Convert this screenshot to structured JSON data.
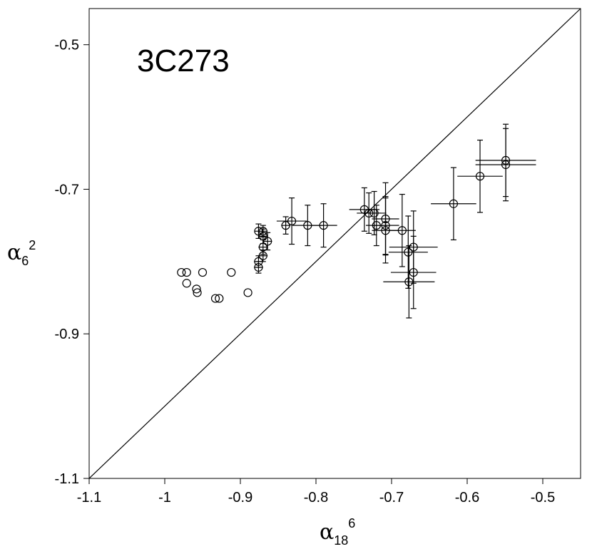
{
  "chart_data": {
    "type": "scatter",
    "title": "",
    "annotation": "3C273",
    "xlabel": {
      "symbol": "α",
      "sub": "18",
      "sup": "6"
    },
    "ylabel": {
      "symbol": "α",
      "sub": "6",
      "sup": "2"
    },
    "xlim": [
      -1.1,
      -0.45
    ],
    "ylim": [
      -1.1,
      -0.45
    ],
    "x_ticks": [
      -1.1,
      -1.0,
      -0.9,
      -0.8,
      -0.7,
      -0.6,
      -0.5
    ],
    "x_tick_labels": [
      "-1.1",
      "-1",
      "-0.9",
      "-0.8",
      "-0.7",
      "-0.6",
      "-0.5"
    ],
    "y_ticks": [
      -1.1,
      -0.9,
      -0.7,
      -0.5
    ],
    "y_tick_labels": [
      "-1.1",
      "-0.9",
      "-0.7",
      "-0.5"
    ],
    "grid": false,
    "reference_line": {
      "type": "identity",
      "from": [
        -1.1,
        -1.1
      ],
      "to": [
        -0.45,
        -0.45
      ]
    },
    "marker": "open-circle",
    "points": [
      {
        "x": -0.978,
        "y": -0.815
      },
      {
        "x": -0.971,
        "y": -0.815
      },
      {
        "x": -0.971,
        "y": -0.83
      },
      {
        "x": -0.958,
        "y": -0.838
      },
      {
        "x": -0.957,
        "y": -0.843
      },
      {
        "x": -0.95,
        "y": -0.815
      },
      {
        "x": -0.933,
        "y": -0.851
      },
      {
        "x": -0.928,
        "y": -0.851
      },
      {
        "x": -0.912,
        "y": -0.815
      },
      {
        "x": -0.89,
        "y": -0.843
      },
      {
        "x": -0.876,
        "y": -0.758,
        "xerr": 0.005,
        "yerr": 0.01
      },
      {
        "x": -0.876,
        "y": -0.8,
        "xerr": 0.006,
        "yerr": 0.008
      },
      {
        "x": -0.876,
        "y": -0.808,
        "xerr": 0.006,
        "yerr": 0.008
      },
      {
        "x": -0.87,
        "y": -0.758,
        "xerr": 0.006,
        "yerr": 0.008
      },
      {
        "x": -0.87,
        "y": -0.765,
        "xerr": 0.006,
        "yerr": 0.01
      },
      {
        "x": -0.87,
        "y": -0.78,
        "xerr": 0.006,
        "yerr": 0.01
      },
      {
        "x": -0.87,
        "y": -0.792,
        "xerr": 0.006,
        "yerr": 0.008
      },
      {
        "x": -0.864,
        "y": -0.772,
        "xerr": 0.006,
        "yerr": 0.012
      },
      {
        "x": -0.84,
        "y": -0.75,
        "xerr": 0.006,
        "yerr": 0.012
      },
      {
        "x": -0.832,
        "y": -0.744,
        "xerr": 0.02,
        "yerr": 0.032
      },
      {
        "x": -0.811,
        "y": -0.75,
        "xerr": 0.02,
        "yerr": 0.028
      },
      {
        "x": -0.79,
        "y": -0.75,
        "xerr": 0.018,
        "yerr": 0.03
      },
      {
        "x": -0.736,
        "y": -0.728,
        "xerr": 0.02,
        "yerr": 0.03
      },
      {
        "x": -0.73,
        "y": -0.733,
        "xerr": 0.016,
        "yerr": 0.028
      },
      {
        "x": -0.723,
        "y": -0.733,
        "xerr": 0.016,
        "yerr": 0.03
      },
      {
        "x": -0.72,
        "y": -0.75,
        "xerr": 0.014,
        "yerr": 0.028
      },
      {
        "x": -0.708,
        "y": -0.741,
        "xerr": 0.018,
        "yerr": 0.05
      },
      {
        "x": -0.708,
        "y": -0.75,
        "xerr": 0.018,
        "yerr": 0.04
      },
      {
        "x": -0.708,
        "y": -0.757,
        "xerr": 0.018,
        "yerr": 0.045
      },
      {
        "x": -0.686,
        "y": -0.757,
        "xerr": 0.018,
        "yerr": 0.05
      },
      {
        "x": -0.678,
        "y": -0.787,
        "xerr": 0.026,
        "yerr": 0.05
      },
      {
        "x": -0.677,
        "y": -0.828,
        "xerr": 0.034,
        "yerr": 0.05
      },
      {
        "x": -0.671,
        "y": -0.78,
        "xerr": 0.032,
        "yerr": 0.05
      },
      {
        "x": -0.671,
        "y": -0.815,
        "xerr": 0.03,
        "yerr": 0.05
      },
      {
        "x": -0.618,
        "y": -0.72,
        "xerr": 0.03,
        "yerr": 0.05
      },
      {
        "x": -0.583,
        "y": -0.682,
        "xerr": 0.03,
        "yerr": 0.05
      },
      {
        "x": -0.549,
        "y": -0.66,
        "xerr": 0.04,
        "yerr": 0.05
      },
      {
        "x": -0.549,
        "y": -0.666,
        "xerr": 0.04,
        "yerr": 0.05
      }
    ]
  }
}
